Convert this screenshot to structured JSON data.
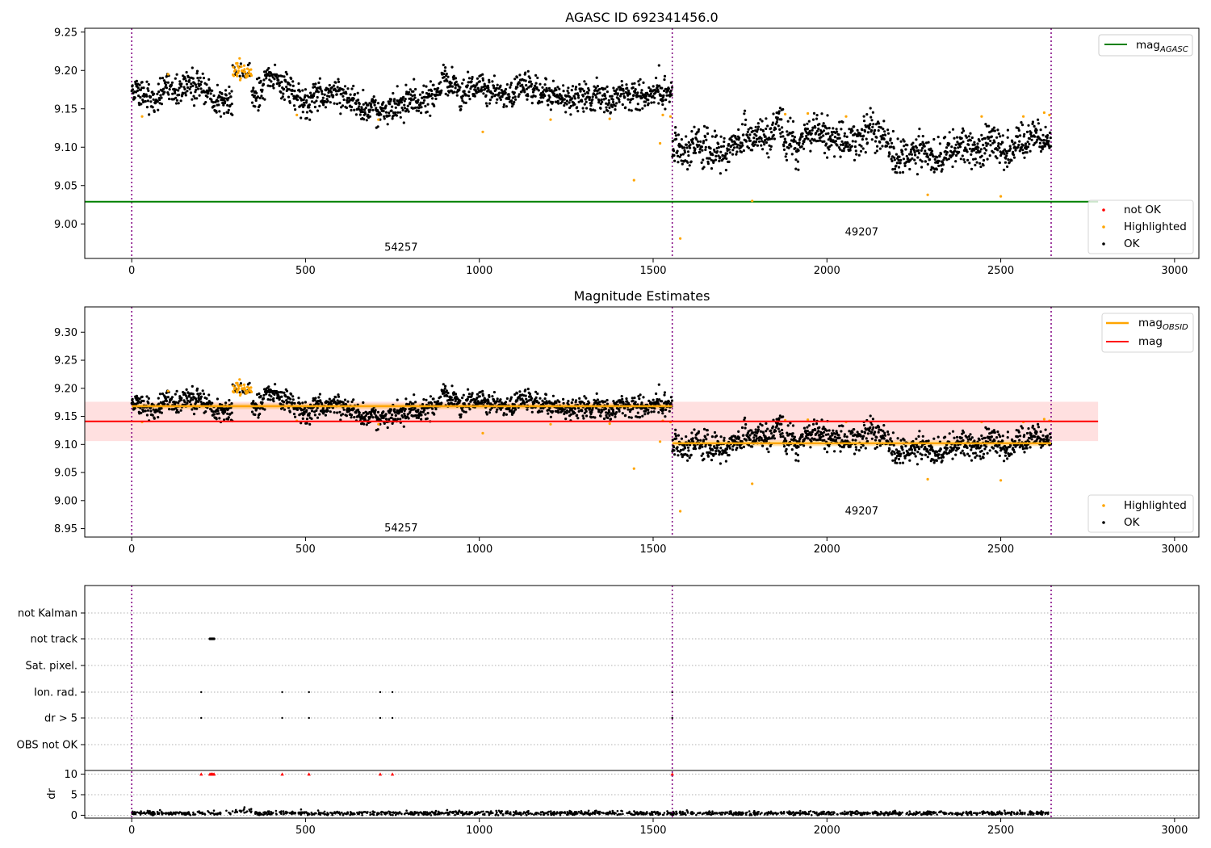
{
  "chart_data": [
    {
      "type": "scatter",
      "title": "AGASC ID 692341456.0",
      "xlim": [
        -135,
        3070
      ],
      "ylim": [
        8.955,
        9.255
      ],
      "x_ticks": [
        0,
        500,
        1000,
        1500,
        2000,
        2500,
        3000
      ],
      "x_tick_labels": [
        "0",
        "500",
        "1000",
        "1500",
        "2000",
        "2500",
        "3000"
      ],
      "y_ticks": [
        9.0,
        9.05,
        9.1,
        9.15,
        9.2,
        9.25
      ],
      "y_tick_labels": [
        "9.00",
        "9.05",
        "9.10",
        "9.15",
        "9.20",
        "9.25"
      ],
      "obs_boundaries": [
        0,
        1555,
        2645
      ],
      "obs_labels": [
        {
          "x": 775,
          "y": 8.965,
          "text": "54257"
        },
        {
          "x": 2100,
          "y": 8.985,
          "text": "49207"
        }
      ],
      "reference_lines": [
        {
          "name": "mag_AGASC",
          "value": 9.029,
          "x_end": 2780,
          "color": "#008000"
        }
      ],
      "legend_lines": [
        {
          "base": "mag",
          "sub": "AGASC",
          "color": "#008000"
        }
      ],
      "legend_markers": [
        {
          "label": "not OK",
          "color": "#ff0000"
        },
        {
          "label": "Highlighted",
          "color": "#ffa500"
        },
        {
          "label": "OK",
          "color": "#000000"
        }
      ],
      "segments": [
        {
          "x_start": 0,
          "x_end": 1555,
          "mean": 9.168,
          "sd": 0.009
        },
        {
          "x_start": 1555,
          "x_end": 2645,
          "mean": 9.102,
          "sd": 0.011
        }
      ],
      "bump": {
        "x_start": 290,
        "x_end": 345,
        "mean": 9.2
      },
      "highlighted_points": [
        [
          30,
          9.14
        ],
        [
          105,
          9.195
        ],
        [
          475,
          9.142
        ],
        [
          710,
          9.136
        ],
        [
          1010,
          9.12
        ],
        [
          1205,
          9.136
        ],
        [
          1375,
          9.137
        ],
        [
          1445,
          9.057
        ],
        [
          1520,
          9.105
        ],
        [
          1528,
          9.142
        ],
        [
          1550,
          9.14
        ],
        [
          1578,
          8.981
        ],
        [
          1785,
          9.03
        ],
        [
          1880,
          9.143
        ],
        [
          1945,
          9.144
        ],
        [
          2055,
          9.14
        ],
        [
          2290,
          9.038
        ],
        [
          2445,
          9.14
        ],
        [
          2500,
          9.036
        ],
        [
          2565,
          9.14
        ],
        [
          2625,
          9.145
        ],
        [
          2640,
          9.142
        ]
      ]
    },
    {
      "type": "scatter",
      "title": "Magnitude Estimates",
      "xlim": [
        -135,
        3070
      ],
      "ylim": [
        8.935,
        9.345
      ],
      "x_ticks": [
        0,
        500,
        1000,
        1500,
        2000,
        2500,
        3000
      ],
      "x_tick_labels": [
        "0",
        "500",
        "1000",
        "1500",
        "2000",
        "2500",
        "3000"
      ],
      "y_ticks": [
        8.95,
        9.0,
        9.05,
        9.1,
        9.15,
        9.2,
        9.25,
        9.3
      ],
      "y_tick_labels": [
        "8.95",
        "9.00",
        "9.05",
        "9.10",
        "9.15",
        "9.20",
        "9.25",
        "9.30"
      ],
      "obs_boundaries": [
        0,
        1555,
        2645
      ],
      "obs_labels": [
        {
          "x": 775,
          "y": 8.945,
          "text": "54257"
        },
        {
          "x": 2100,
          "y": 8.975,
          "text": "49207"
        }
      ],
      "mag_line": {
        "value": 9.141,
        "band": [
          9.106,
          9.176
        ],
        "x_end": 2780,
        "color": "#ff0000"
      },
      "mag_obsid": [
        {
          "x_start": 0,
          "x_end": 1555,
          "value": 9.168
        },
        {
          "x_start": 1555,
          "x_end": 2645,
          "value": 9.102
        }
      ],
      "legend_lines": [
        {
          "base": "mag",
          "sub": "OBSID",
          "color": "#ffa500"
        },
        {
          "base": "mag",
          "sub": "",
          "color": "#ff0000"
        }
      ],
      "legend_markers": [
        {
          "label": "Highlighted",
          "color": "#ffa500"
        },
        {
          "label": "OK",
          "color": "#000000"
        }
      ]
    },
    {
      "type": "scatter",
      "title": "",
      "xlim": [
        -135,
        3070
      ],
      "x_ticks": [
        0,
        500,
        1000,
        1500,
        2000,
        2500,
        3000
      ],
      "x_tick_labels": [
        "0",
        "500",
        "1000",
        "1500",
        "2000",
        "2500",
        "3000"
      ],
      "flag_rows": [
        "not Kalman",
        "not track",
        "Sat. pixel.",
        "Ion. rad.",
        "dr > 5",
        "OBS not OK"
      ],
      "flag_points": {
        "not track": [
          225,
          227,
          229,
          231,
          233,
          235,
          237
        ],
        "Ion. rad.": [
          200,
          433,
          510,
          715,
          750,
          1555
        ],
        "dr > 5": [
          200,
          433,
          510,
          715,
          750,
          1555
        ]
      },
      "dr_ylabel": "dr",
      "dr_ylim": [
        -0.7,
        10.7
      ],
      "dr_ticks": [
        0,
        5,
        10
      ],
      "dr_tick_labels": [
        "0",
        "5",
        "10"
      ],
      "dr_capped_points": [
        200,
        225,
        228,
        231,
        234,
        237,
        433,
        510,
        715,
        750,
        1555
      ],
      "dr_typical": 0.5,
      "obs_boundaries": [
        0,
        1555,
        2645
      ]
    }
  ]
}
